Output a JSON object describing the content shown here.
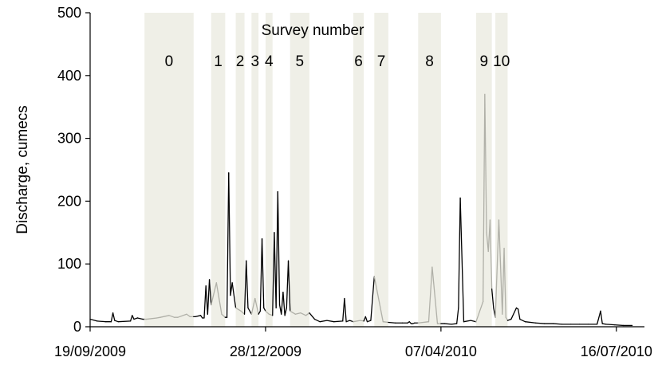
{
  "chart_data": {
    "type": "line",
    "title": "",
    "xlabel": "",
    "ylabel": "Discharge, cumecs",
    "annotation": "Survey number",
    "ylim": [
      0,
      500
    ],
    "yticks": [
      0,
      100,
      200,
      300,
      400,
      500
    ],
    "xlim": [
      "2009-09-19",
      "2010-08-01"
    ],
    "xticks": [
      {
        "date": "2009-09-19",
        "label": "19/09/2009"
      },
      {
        "date": "2009-12-28",
        "label": "28/12/2009"
      },
      {
        "date": "2010-04-07",
        "label": "07/04/2010"
      },
      {
        "date": "2010-07-16",
        "label": "16/07/2010"
      }
    ],
    "colors": {
      "band": "#efefe7",
      "in_survey_line": "#b0b0a8",
      "line": "#000000"
    },
    "survey_periods": [
      {
        "label": "0",
        "start": "2009-10-20",
        "end": "2009-11-16"
      },
      {
        "label": "1",
        "start": "2009-11-27",
        "end": "2009-12-04"
      },
      {
        "label": "2",
        "start": "2009-12-11",
        "end": "2009-12-15"
      },
      {
        "label": "3",
        "start": "2009-12-20",
        "end": "2009-12-23"
      },
      {
        "label": "4",
        "start": "2009-12-28",
        "end": "2009-12-31"
      },
      {
        "label": "5",
        "start": "2010-01-11",
        "end": "2010-01-21"
      },
      {
        "label": "6",
        "start": "2010-02-16",
        "end": "2010-02-21"
      },
      {
        "label": "7",
        "start": "2010-02-28",
        "end": "2010-03-07"
      },
      {
        "label": "8",
        "start": "2010-03-25",
        "end": "2010-04-06"
      },
      {
        "label": "9",
        "start": "2010-04-27",
        "end": "2010-05-05"
      },
      {
        "label": "10",
        "start": "2010-05-08",
        "end": "2010-05-14"
      }
    ],
    "series": [
      {
        "x": [
          "2009-09-19",
          "2009-09-23",
          "2009-09-28",
          "2009-10-01",
          "2009-10-02",
          "2009-10-03",
          "2009-10-05",
          "2009-10-12",
          "2009-10-13",
          "2009-10-14",
          "2009-10-16",
          "2009-10-19",
          "2009-10-21",
          "2009-10-27",
          "2009-10-29",
          "2009-11-03",
          "2009-11-06",
          "2009-11-08",
          "2009-11-13",
          "2009-11-15",
          "2009-11-18",
          "2009-11-21",
          "2009-11-22",
          "2009-11-23",
          "2009-11-24",
          "2009-11-25",
          "2009-11-26",
          "2009-11-27",
          "2009-11-30",
          "2009-12-03",
          "2009-12-05",
          "2009-12-06",
          "2009-12-07",
          "2009-12-08",
          "2009-12-09",
          "2009-12-11",
          "2009-12-14",
          "2009-12-16",
          "2009-12-17",
          "2009-12-18",
          "2009-12-20",
          "2009-12-22",
          "2009-12-24",
          "2009-12-25",
          "2009-12-26",
          "2009-12-27",
          "2009-12-28",
          "2009-12-30",
          "2010-01-01",
          "2010-01-02",
          "2010-01-03",
          "2010-01-04",
          "2010-01-05",
          "2010-01-06",
          "2010-01-07",
          "2010-01-08",
          "2010-01-09",
          "2010-01-10",
          "2010-01-11",
          "2010-01-14",
          "2010-01-17",
          "2010-01-20",
          "2010-01-22",
          "2010-01-25",
          "2010-01-28",
          "2010-02-01",
          "2010-02-05",
          "2010-02-10",
          "2010-02-11",
          "2010-02-12",
          "2010-02-14",
          "2010-02-16",
          "2010-02-20",
          "2010-02-22",
          "2010-02-23",
          "2010-02-24",
          "2010-02-26",
          "2010-02-28",
          "2010-03-05",
          "2010-03-08",
          "2010-03-12",
          "2010-03-16",
          "2010-03-19",
          "2010-03-20",
          "2010-03-21",
          "2010-03-22",
          "2010-03-23",
          "2010-03-25",
          "2010-03-31",
          "2010-04-02",
          "2010-04-05",
          "2010-04-07",
          "2010-04-09",
          "2010-04-13",
          "2010-04-16",
          "2010-04-17",
          "2010-04-18",
          "2010-04-20",
          "2010-04-24",
          "2010-04-27",
          "2010-05-01",
          "2010-05-02",
          "2010-05-03",
          "2010-05-04",
          "2010-05-05",
          "2010-05-06",
          "2010-05-07",
          "2010-05-08",
          "2010-05-10",
          "2010-05-12",
          "2010-05-13",
          "2010-05-14",
          "2010-05-15",
          "2010-05-17",
          "2010-05-20",
          "2010-05-21",
          "2010-05-22",
          "2010-05-25",
          "2010-05-31",
          "2010-06-05",
          "2010-06-10",
          "2010-06-15",
          "2010-06-20",
          "2010-06-25",
          "2010-06-30",
          "2010-07-05",
          "2010-07-07",
          "2010-07-08",
          "2010-07-10",
          "2010-07-15",
          "2010-07-20",
          "2010-07-25"
        ],
        "y": [
          12,
          9,
          8,
          8,
          22,
          10,
          8,
          9,
          18,
          12,
          14,
          12,
          12,
          14,
          15,
          18,
          15,
          15,
          20,
          16,
          16,
          18,
          14,
          14,
          65,
          20,
          75,
          35,
          70,
          20,
          15,
          15,
          245,
          50,
          70,
          30,
          25,
          20,
          105,
          30,
          20,
          45,
          20,
          25,
          140,
          30,
          25,
          20,
          18,
          150,
          30,
          215,
          35,
          20,
          55,
          18,
          30,
          105,
          25,
          20,
          22,
          18,
          22,
          12,
          8,
          10,
          8,
          9,
          45,
          8,
          10,
          8,
          10,
          9,
          16,
          8,
          10,
          80,
          8,
          7,
          6,
          6,
          6,
          8,
          5,
          5,
          6,
          6,
          8,
          95,
          5,
          5,
          5,
          4,
          5,
          30,
          205,
          8,
          10,
          8,
          40,
          370,
          150,
          120,
          170,
          60,
          30,
          15,
          170,
          20,
          125,
          15,
          10,
          12,
          30,
          28,
          12,
          8,
          6,
          5,
          5,
          4,
          4,
          4,
          4,
          4,
          25,
          5,
          4,
          3,
          2,
          2
        ]
      }
    ]
  }
}
